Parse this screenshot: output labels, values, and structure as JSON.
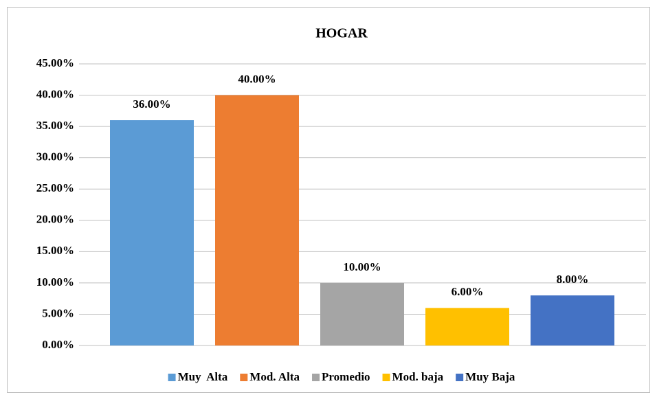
{
  "chart_data": {
    "type": "bar",
    "title": "HOGAR",
    "series": [
      {
        "name": "Muy  Alta",
        "color": "#5b9bd5",
        "values": [
          36
        ],
        "value_labels": [
          "36.00%"
        ]
      },
      {
        "name": "Mod. Alta",
        "color": "#ed7d31",
        "values": [
          40
        ],
        "value_labels": [
          "40.00%"
        ]
      },
      {
        "name": "Promedio",
        "color": "#a5a5a5",
        "values": [
          10
        ],
        "value_labels": [
          "10.00%"
        ]
      },
      {
        "name": "Mod. baja",
        "color": "#ffc000",
        "values": [
          6
        ],
        "value_labels": [
          "6.00%"
        ]
      },
      {
        "name": "Muy Baja",
        "color": "#4472c4",
        "values": [
          8
        ],
        "value_labels": [
          "8.00%"
        ]
      }
    ],
    "ylim": [
      0,
      45
    ],
    "yticks": [
      {
        "value": 0,
        "label": "0.00%"
      },
      {
        "value": 5,
        "label": "5.00%"
      },
      {
        "value": 10,
        "label": "10.00%"
      },
      {
        "value": 15,
        "label": "15.00%"
      },
      {
        "value": 20,
        "label": "20.00%"
      },
      {
        "value": 25,
        "label": "25.00%"
      },
      {
        "value": 30,
        "label": "30.00%"
      },
      {
        "value": 35,
        "label": "35.00%"
      },
      {
        "value": 40,
        "label": "40.00%"
      },
      {
        "value": 45,
        "label": "45.00%"
      }
    ],
    "grid": true,
    "legend": "bottom"
  }
}
